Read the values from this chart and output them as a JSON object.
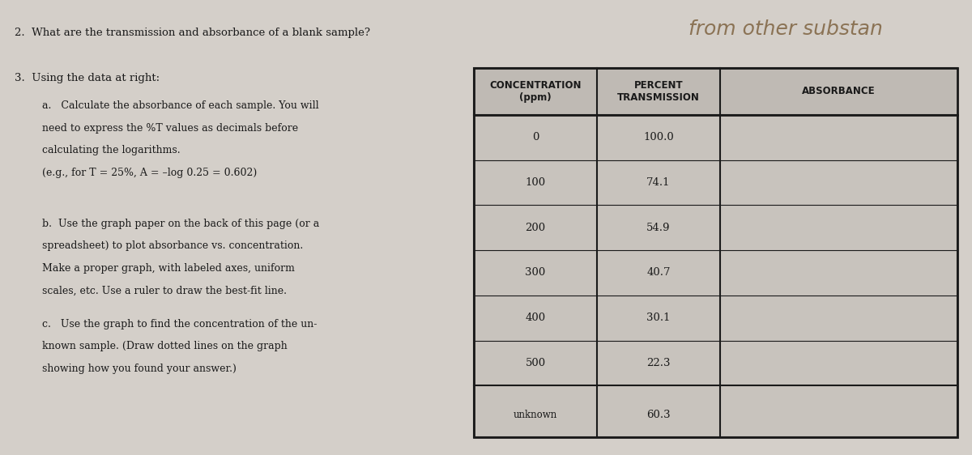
{
  "bg_color": "#d4cfc9",
  "question2_text": "2.  What are the transmission and absorbance of a blank sample?",
  "handwritten_text": "from other substan",
  "question3_intro": "3.  Using the data at right:",
  "sub_a_lines": [
    "a.   Calculate the absorbance of each sample. You will",
    "need to express the %T values as decimals before",
    "calculating the logarithms.",
    "(e.g., for T = 25%, A = –log 0.25 = 0.602)"
  ],
  "sub_b_lines": [
    "b.  Use the graph paper on the back of this page (or a",
    "spreadsheet) to plot absorbance vs. concentration.",
    "Make a proper graph, with labeled axes, uniform",
    "scales, etc. Use a ruler to draw the best-fit line."
  ],
  "sub_c_lines": [
    "c.   Use the graph to find the concentration of the un-",
    "known sample. (Draw dotted lines on the graph",
    "showing how you found your answer.)"
  ],
  "table_header": [
    "CONCENTRATION\n(ppm)",
    "PERCENT\nTRANSMISSION",
    "ABSORBANCE"
  ],
  "table_rows": [
    [
      "0",
      "100.0",
      ""
    ],
    [
      "100",
      "74.1",
      ""
    ],
    [
      "200",
      "54.9",
      ""
    ],
    [
      "300",
      "40.7",
      ""
    ],
    [
      "400",
      "30.1",
      ""
    ],
    [
      "500",
      "22.3",
      ""
    ],
    [
      "unknown",
      "60.3",
      ""
    ]
  ],
  "text_color": "#1a1a1a",
  "table_bg": "#c8c3bd",
  "table_border": "#1a1a1a",
  "table_header_bg": "#c8c3bd"
}
